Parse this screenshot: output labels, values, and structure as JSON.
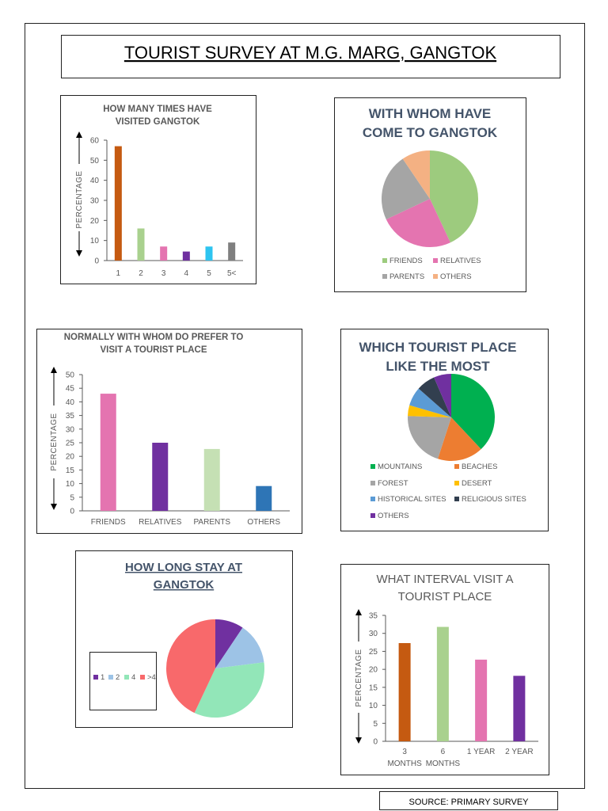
{
  "page_title": "TOURIST SURVEY AT M.G. MARG, GANGTOK",
  "source": "SOURCE: PRIMARY SURVEY",
  "chart_data": [
    {
      "id": "visits",
      "type": "bar",
      "title_lines": [
        "HOW MANY TIMES HAVE",
        "VISITED GANGTOK"
      ],
      "categories": [
        "1",
        "2",
        "3",
        "4",
        "5",
        "5<"
      ],
      "values": [
        57,
        16,
        7,
        4.5,
        7,
        9
      ],
      "colors": [
        "#c55a11",
        "#a9d18e",
        "#e474b0",
        "#7030a0",
        "#2ec4f0",
        "#7f7f7f"
      ],
      "ylabel": "PERCENTAGE",
      "ylim": [
        0,
        60
      ],
      "yticks": [
        0,
        10,
        20,
        30,
        40,
        50,
        60
      ],
      "grid": false
    },
    {
      "id": "company",
      "type": "pie",
      "title_lines": [
        "WITH WHOM HAVE",
        "COME TO GANGTOK"
      ],
      "categories": [
        "FRIENDS",
        "RELATIVES",
        "PARENTS",
        "OTHERS"
      ],
      "values": [
        43,
        25,
        22.5,
        9.5
      ],
      "colors": [
        "#9dcb7e",
        "#e474b0",
        "#a5a5a5",
        "#f4b183"
      ],
      "legend": "bottom"
    },
    {
      "id": "prefer",
      "type": "bar",
      "title_lines": [
        "NORMALLY WITH WHOM DO PREFER TO",
        "VISIT A TOURIST PLACE"
      ],
      "categories": [
        "FRIENDS",
        "RELATIVES",
        "PARENTS",
        "OTHERS"
      ],
      "values": [
        43,
        25,
        22.7,
        9.1
      ],
      "colors": [
        "#e474b0",
        "#7030a0",
        "#c5e0b4",
        "#2e75b6"
      ],
      "ylabel": "PERCENTAGE",
      "ylim": [
        0,
        50
      ],
      "yticks": [
        0,
        5,
        10,
        15,
        20,
        25,
        30,
        35,
        40,
        45,
        50
      ],
      "grid": false
    },
    {
      "id": "place",
      "type": "pie",
      "title_lines": [
        "WHICH TOURIST PLACE",
        "LIKE THE MOST"
      ],
      "categories": [
        "MOUNTAINS",
        "BEACHES",
        "FOREST",
        "DESERT",
        "HISTORICAL SITES",
        "RELIGIOUS SITES",
        "OTHERS"
      ],
      "values": [
        38,
        17,
        20.5,
        4,
        7,
        7,
        6.5
      ],
      "colors": [
        "#00b050",
        "#ed7d31",
        "#a5a5a5",
        "#ffc000",
        "#5b9bd5",
        "#323f4f",
        "#7030a0"
      ],
      "legend": "bottom"
    },
    {
      "id": "stay",
      "type": "pie",
      "title_lines": [
        "HOW LONG STAY AT",
        "GANGTOK"
      ],
      "categories": [
        "1",
        "2",
        "4",
        ">4"
      ],
      "values": [
        9.4,
        13.6,
        34,
        43
      ],
      "colors": [
        "#7030a0",
        "#9dc3e6",
        "#92e6b8",
        "#f8696b"
      ],
      "legend": "left"
    },
    {
      "id": "interval",
      "type": "bar",
      "title_lines": [
        "WHAT INTERVAL VISIT A",
        "TOURIST PLACE"
      ],
      "categories": [
        "3 MONTHS",
        "6 MONTHS",
        "1 YEAR",
        "2 YEAR"
      ],
      "values": [
        27.3,
        31.8,
        22.7,
        18.2
      ],
      "colors": [
        "#c55a11",
        "#a9d18e",
        "#e474b0",
        "#7030a0"
      ],
      "ylabel": "PERCENTAGE",
      "ylim": [
        0,
        35
      ],
      "yticks": [
        0,
        5,
        10,
        15,
        20,
        25,
        30,
        35
      ],
      "grid": false
    }
  ]
}
